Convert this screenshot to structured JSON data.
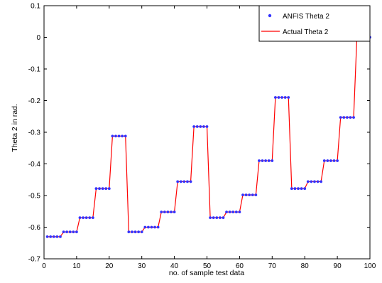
{
  "chart_data": {
    "type": "line",
    "title": "",
    "xlabel": "no. of sample test data",
    "ylabel": "Theta 2 in rad.",
    "xlim": [
      0,
      100
    ],
    "ylim": [
      -0.7,
      0.1
    ],
    "xticks": [
      0,
      10,
      20,
      30,
      40,
      50,
      60,
      70,
      80,
      90,
      100
    ],
    "xtick_labels": [
      "0",
      "10",
      "20",
      "30",
      "40",
      "50",
      "60",
      "70",
      "80",
      "90",
      "100"
    ],
    "yticks": [
      0.1,
      0,
      -0.1,
      -0.2,
      -0.3,
      -0.4,
      -0.5,
      -0.6,
      -0.7
    ],
    "ytick_labels": [
      "0.1",
      "0",
      "-0.1",
      "-0.2",
      "-0.3",
      "-0.4",
      "-0.5",
      "-0.6",
      "-0.7"
    ],
    "grid": false,
    "legend_position": "top-right",
    "x": [
      1,
      2,
      3,
      4,
      5,
      6,
      7,
      8,
      9,
      10,
      11,
      12,
      13,
      14,
      15,
      16,
      17,
      18,
      19,
      20,
      21,
      22,
      23,
      24,
      25,
      26,
      27,
      28,
      29,
      30,
      31,
      32,
      33,
      34,
      35,
      36,
      37,
      38,
      39,
      40,
      41,
      42,
      43,
      44,
      45,
      46,
      47,
      48,
      49,
      50,
      51,
      52,
      53,
      54,
      55,
      56,
      57,
      58,
      59,
      60,
      61,
      62,
      63,
      64,
      65,
      66,
      67,
      68,
      69,
      70,
      71,
      72,
      73,
      74,
      75,
      76,
      77,
      78,
      79,
      80,
      81,
      82,
      83,
      84,
      85,
      86,
      87,
      88,
      89,
      90,
      91,
      92,
      93,
      94,
      95,
      96,
      97,
      98,
      99,
      100
    ],
    "series": [
      {
        "name": "ANFIS Theta 2",
        "style": "markers",
        "color": "#3333ff",
        "values": [
          -0.63,
          -0.63,
          -0.63,
          -0.63,
          -0.63,
          -0.615,
          -0.615,
          -0.615,
          -0.615,
          -0.615,
          -0.57,
          -0.57,
          -0.57,
          -0.57,
          -0.57,
          -0.478,
          -0.478,
          -0.478,
          -0.478,
          -0.478,
          -0.312,
          -0.312,
          -0.312,
          -0.312,
          -0.312,
          -0.615,
          -0.615,
          -0.615,
          -0.615,
          -0.615,
          -0.6,
          -0.6,
          -0.6,
          -0.6,
          -0.6,
          -0.552,
          -0.552,
          -0.552,
          -0.552,
          -0.552,
          -0.456,
          -0.456,
          -0.456,
          -0.456,
          -0.456,
          -0.282,
          -0.282,
          -0.282,
          -0.282,
          -0.282,
          -0.57,
          -0.57,
          -0.57,
          -0.57,
          -0.57,
          -0.552,
          -0.552,
          -0.552,
          -0.552,
          -0.552,
          -0.498,
          -0.498,
          -0.498,
          -0.498,
          -0.498,
          -0.39,
          -0.39,
          -0.39,
          -0.39,
          -0.39,
          -0.19,
          -0.19,
          -0.19,
          -0.19,
          -0.19,
          -0.478,
          -0.478,
          -0.478,
          -0.478,
          -0.478,
          -0.456,
          -0.456,
          -0.456,
          -0.456,
          -0.456,
          -0.39,
          -0.39,
          -0.39,
          -0.39,
          -0.39,
          -0.253,
          -0.253,
          -0.253,
          -0.253,
          -0.253,
          0,
          0,
          0,
          0,
          0
        ]
      },
      {
        "name": "Actual Theta 2",
        "style": "line",
        "color": "#ff0000",
        "values": [
          -0.63,
          -0.63,
          -0.63,
          -0.63,
          -0.63,
          -0.615,
          -0.615,
          -0.615,
          -0.615,
          -0.615,
          -0.57,
          -0.57,
          -0.57,
          -0.57,
          -0.57,
          -0.478,
          -0.478,
          -0.478,
          -0.478,
          -0.478,
          -0.312,
          -0.312,
          -0.312,
          -0.312,
          -0.312,
          -0.615,
          -0.615,
          -0.615,
          -0.615,
          -0.615,
          -0.6,
          -0.6,
          -0.6,
          -0.6,
          -0.6,
          -0.552,
          -0.552,
          -0.552,
          -0.552,
          -0.552,
          -0.456,
          -0.456,
          -0.456,
          -0.456,
          -0.456,
          -0.282,
          -0.282,
          -0.282,
          -0.282,
          -0.282,
          -0.57,
          -0.57,
          -0.57,
          -0.57,
          -0.57,
          -0.552,
          -0.552,
          -0.552,
          -0.552,
          -0.552,
          -0.498,
          -0.498,
          -0.498,
          -0.498,
          -0.498,
          -0.39,
          -0.39,
          -0.39,
          -0.39,
          -0.39,
          -0.19,
          -0.19,
          -0.19,
          -0.19,
          -0.19,
          -0.478,
          -0.478,
          -0.478,
          -0.478,
          -0.478,
          -0.456,
          -0.456,
          -0.456,
          -0.456,
          -0.456,
          -0.39,
          -0.39,
          -0.39,
          -0.39,
          -0.39,
          -0.253,
          -0.253,
          -0.253,
          -0.253,
          -0.253,
          0,
          0,
          0,
          0,
          0
        ]
      }
    ]
  }
}
